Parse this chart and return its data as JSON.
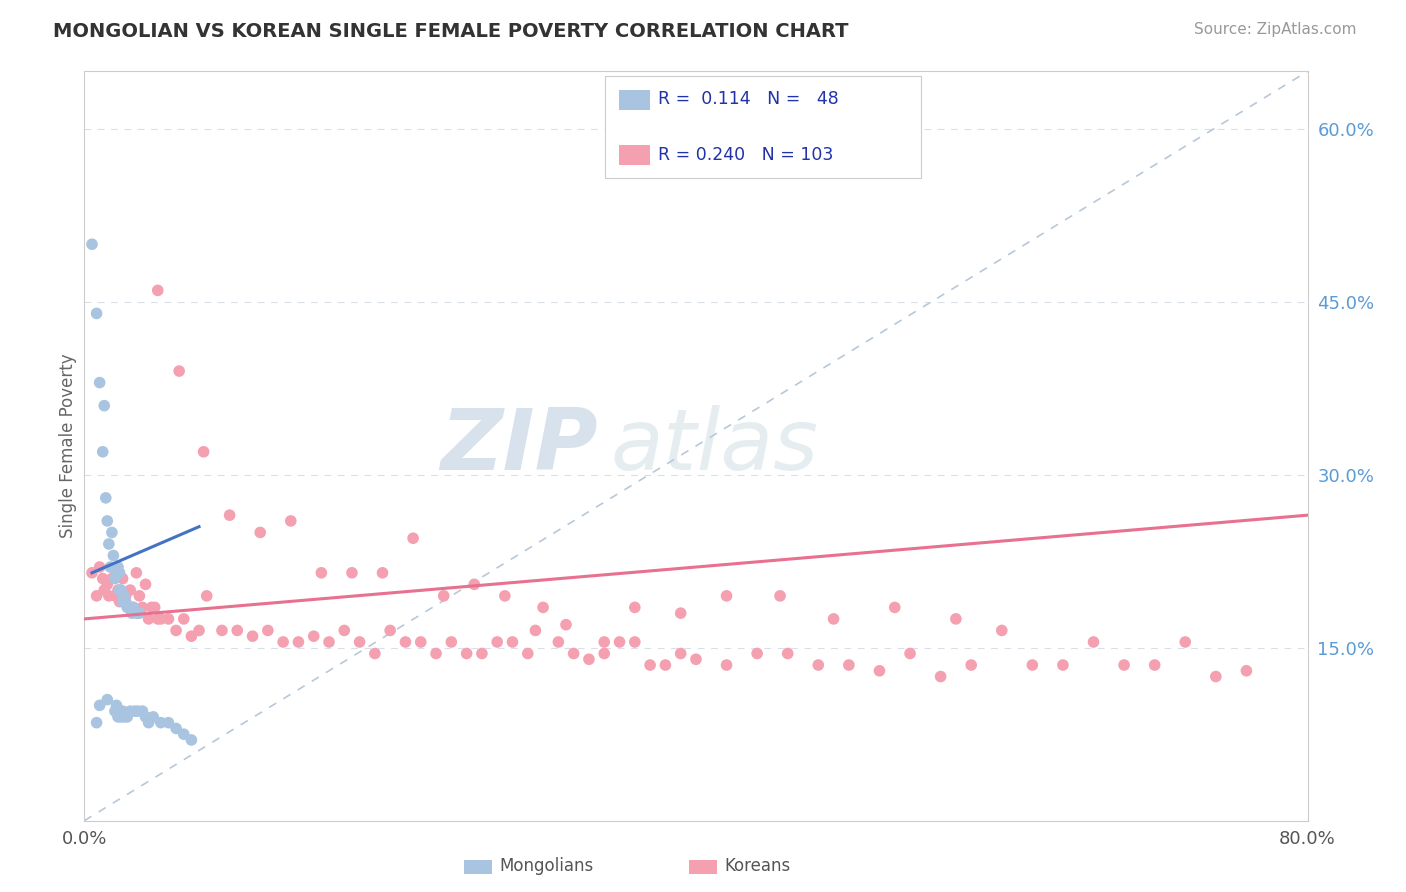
{
  "title": "MONGOLIAN VS KOREAN SINGLE FEMALE POVERTY CORRELATION CHART",
  "source": "Source: ZipAtlas.com",
  "ylabel": "Single Female Poverty",
  "xlim": [
    0.0,
    0.8
  ],
  "ylim": [
    0.0,
    0.65
  ],
  "mongolian_color": "#a8c4e0",
  "korean_color": "#f4a0b0",
  "mongolian_line_color": "#4472c4",
  "korean_line_color": "#e87090",
  "diag_color": "#b8c8d8",
  "watermark_zip": "ZIP",
  "watermark_atlas": "atlas",
  "mongolian_x": [
    0.005,
    0.008,
    0.008,
    0.01,
    0.01,
    0.012,
    0.013,
    0.014,
    0.015,
    0.015,
    0.016,
    0.017,
    0.018,
    0.019,
    0.02,
    0.02,
    0.021,
    0.021,
    0.022,
    0.022,
    0.023,
    0.023,
    0.024,
    0.024,
    0.025,
    0.025,
    0.026,
    0.026,
    0.027,
    0.028,
    0.028,
    0.03,
    0.03,
    0.031,
    0.032,
    0.033,
    0.034,
    0.035,
    0.036,
    0.038,
    0.04,
    0.042,
    0.045,
    0.05,
    0.055,
    0.06,
    0.065,
    0.07
  ],
  "mongolian_y": [
    0.5,
    0.44,
    0.085,
    0.38,
    0.1,
    0.32,
    0.36,
    0.28,
    0.26,
    0.105,
    0.24,
    0.22,
    0.25,
    0.23,
    0.21,
    0.095,
    0.215,
    0.1,
    0.22,
    0.09,
    0.2,
    0.215,
    0.2,
    0.09,
    0.19,
    0.095,
    0.195,
    0.09,
    0.19,
    0.185,
    0.09,
    0.185,
    0.095,
    0.18,
    0.185,
    0.095,
    0.18,
    0.095,
    0.18,
    0.095,
    0.09,
    0.085,
    0.09,
    0.085,
    0.085,
    0.08,
    0.075,
    0.07
  ],
  "korean_x": [
    0.005,
    0.008,
    0.01,
    0.012,
    0.013,
    0.015,
    0.016,
    0.018,
    0.02,
    0.022,
    0.023,
    0.025,
    0.027,
    0.03,
    0.032,
    0.034,
    0.036,
    0.038,
    0.04,
    0.042,
    0.044,
    0.046,
    0.048,
    0.05,
    0.055,
    0.06,
    0.065,
    0.07,
    0.075,
    0.08,
    0.09,
    0.1,
    0.11,
    0.12,
    0.13,
    0.14,
    0.15,
    0.16,
    0.17,
    0.18,
    0.19,
    0.2,
    0.21,
    0.22,
    0.23,
    0.24,
    0.25,
    0.26,
    0.27,
    0.28,
    0.29,
    0.3,
    0.31,
    0.32,
    0.33,
    0.34,
    0.35,
    0.36,
    0.37,
    0.38,
    0.39,
    0.4,
    0.42,
    0.44,
    0.46,
    0.48,
    0.5,
    0.52,
    0.54,
    0.56,
    0.58,
    0.6,
    0.62,
    0.64,
    0.66,
    0.68,
    0.7,
    0.72,
    0.74,
    0.76,
    0.048,
    0.062,
    0.078,
    0.095,
    0.115,
    0.135,
    0.155,
    0.175,
    0.195,
    0.215,
    0.235,
    0.255,
    0.275,
    0.295,
    0.315,
    0.34,
    0.36,
    0.39,
    0.42,
    0.455,
    0.49,
    0.53,
    0.57
  ],
  "korean_y": [
    0.215,
    0.195,
    0.22,
    0.21,
    0.2,
    0.205,
    0.195,
    0.21,
    0.195,
    0.2,
    0.19,
    0.21,
    0.195,
    0.2,
    0.185,
    0.215,
    0.195,
    0.185,
    0.205,
    0.175,
    0.185,
    0.185,
    0.175,
    0.175,
    0.175,
    0.165,
    0.175,
    0.16,
    0.165,
    0.195,
    0.165,
    0.165,
    0.16,
    0.165,
    0.155,
    0.155,
    0.16,
    0.155,
    0.165,
    0.155,
    0.145,
    0.165,
    0.155,
    0.155,
    0.145,
    0.155,
    0.145,
    0.145,
    0.155,
    0.155,
    0.145,
    0.185,
    0.155,
    0.145,
    0.14,
    0.145,
    0.155,
    0.155,
    0.135,
    0.135,
    0.145,
    0.14,
    0.135,
    0.145,
    0.145,
    0.135,
    0.135,
    0.13,
    0.145,
    0.125,
    0.135,
    0.165,
    0.135,
    0.135,
    0.155,
    0.135,
    0.135,
    0.155,
    0.125,
    0.13,
    0.46,
    0.39,
    0.32,
    0.265,
    0.25,
    0.26,
    0.215,
    0.215,
    0.215,
    0.245,
    0.195,
    0.205,
    0.195,
    0.165,
    0.17,
    0.155,
    0.185,
    0.18,
    0.195,
    0.195,
    0.175,
    0.185,
    0.175
  ],
  "korean_trendline_start_x": 0.0,
  "korean_trendline_start_y": 0.175,
  "korean_trendline_end_x": 0.8,
  "korean_trendline_end_y": 0.265,
  "mongolian_trendline_start_x": 0.005,
  "mongolian_trendline_start_y": 0.215,
  "mongolian_trendline_end_x": 0.075,
  "mongolian_trendline_end_y": 0.255
}
